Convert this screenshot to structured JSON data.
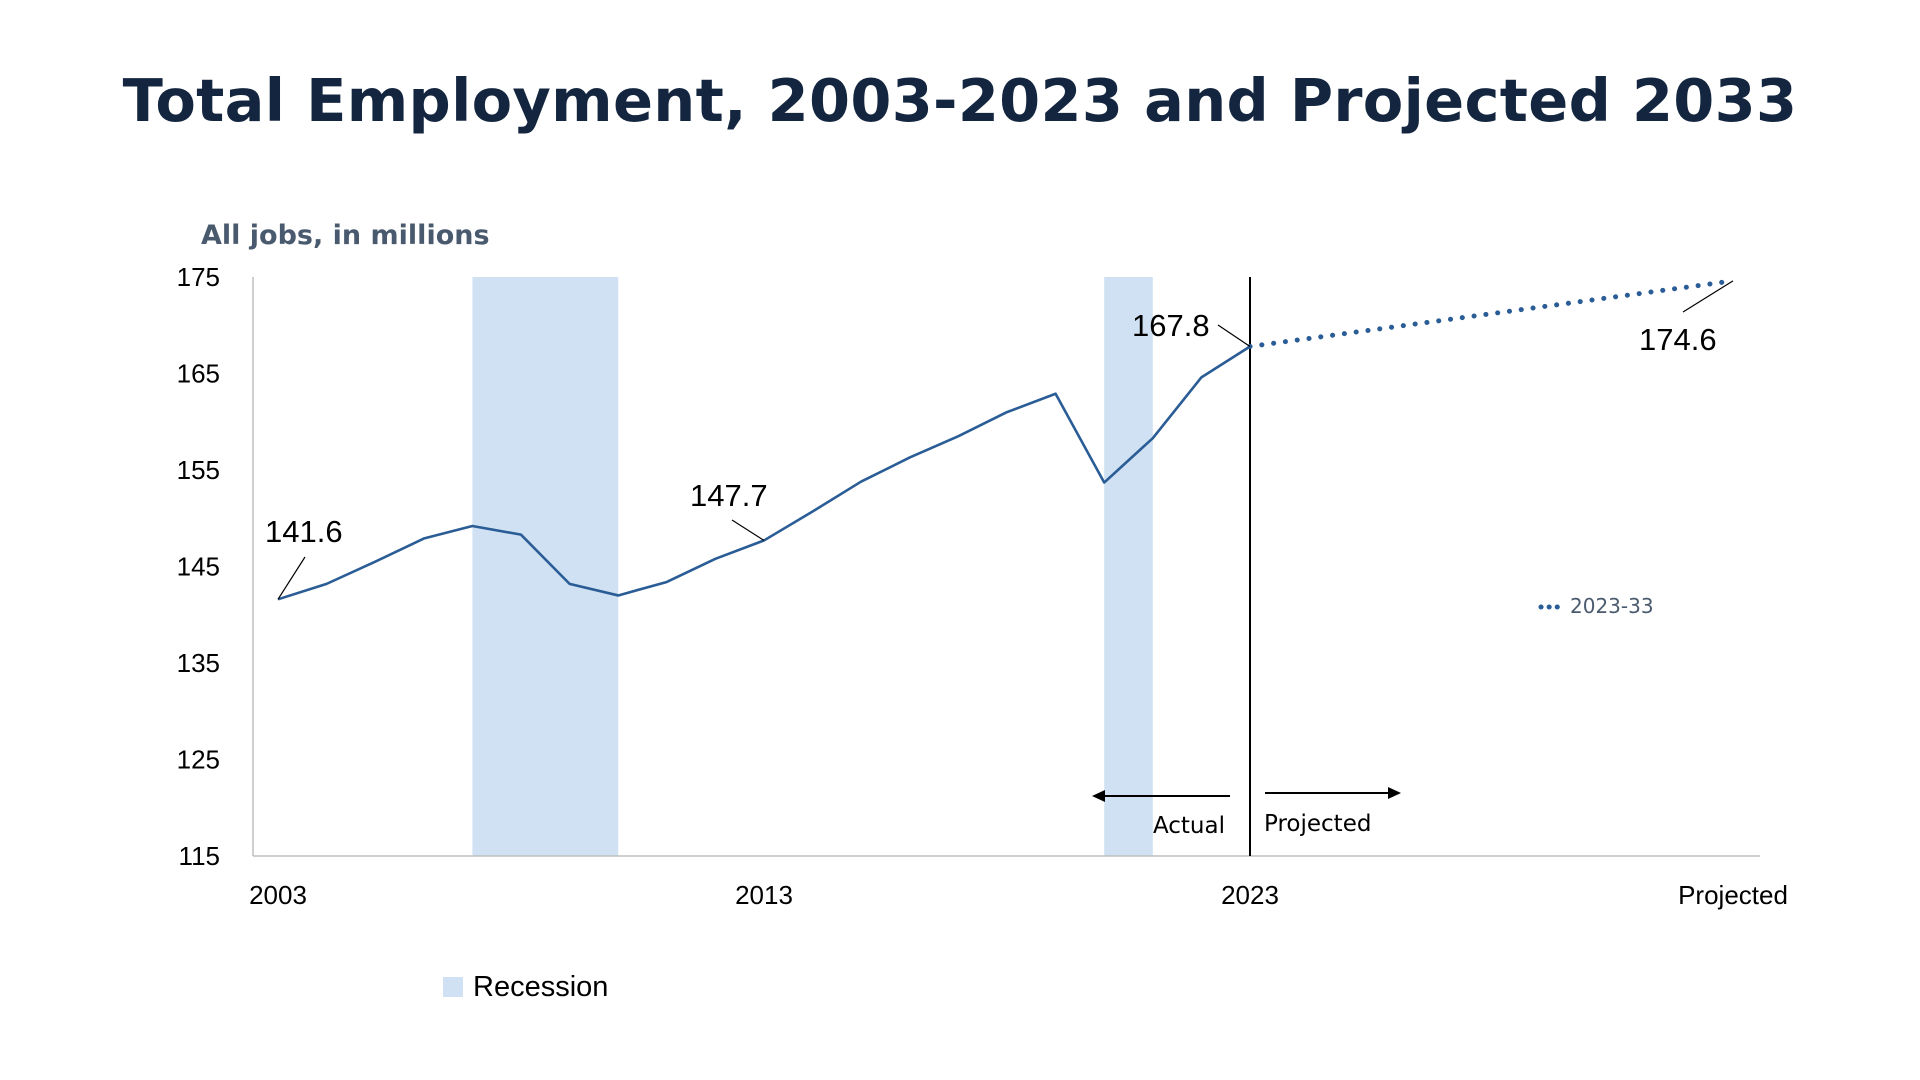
{
  "title": "Total Employment, 2003-2023 and Projected 2033",
  "colors": {
    "line": "#2a5d96",
    "recession": "#cfe1f2",
    "title": "#14263f",
    "axis_title": "#4a5a6e"
  },
  "chart_data": {
    "type": "line",
    "title": "Total Employment, 2003-2023 and Projected 2033",
    "ylabel": "All jobs, in millions",
    "xlabel": "",
    "ylim": [
      115,
      175
    ],
    "yticks": [
      "175",
      "165",
      "155",
      "145",
      "135",
      "125",
      "115"
    ],
    "xticks": [
      "2003",
      "2013",
      "2023",
      "Projected"
    ],
    "grid": false,
    "series": [
      {
        "style": "solid",
        "x": [
          "2003",
          "2004",
          "2005",
          "2006",
          "2007",
          "2008",
          "2009",
          "2010",
          "2011",
          "2012",
          "2013",
          "2014",
          "2015",
          "2016",
          "2017",
          "2018",
          "2019",
          "2020",
          "2021",
          "2022",
          "2023"
        ],
        "values": [
          141.6,
          143.2,
          145.5,
          147.9,
          149.2,
          148.3,
          143.2,
          142.0,
          143.4,
          145.8,
          147.7,
          150.7,
          153.8,
          156.3,
          158.5,
          161.0,
          162.9,
          153.7,
          158.3,
          164.6,
          167.8
        ]
      },
      {
        "name": "2023-33",
        "style": "dotted",
        "x": [
          "2023",
          "Projected"
        ],
        "values": [
          167.8,
          174.6
        ]
      }
    ],
    "recessions": [
      {
        "start": 2007.0,
        "end": 2010.0
      },
      {
        "start": 2020.0,
        "end": 2021.0
      }
    ],
    "annotations": [
      {
        "x": "2003",
        "value": 141.6,
        "label": "141.6"
      },
      {
        "x": "2013",
        "value": 147.7,
        "label": "147.7"
      },
      {
        "x": "2023",
        "value": 167.8,
        "label": "167.8"
      },
      {
        "x": "Projected",
        "value": 174.6,
        "label": "174.6"
      }
    ],
    "divider": {
      "x": "2023",
      "left_label": "Actual",
      "right_label": "Projected"
    },
    "legend": [
      {
        "label": "2023-33",
        "style": "dotted"
      },
      {
        "label": "Recession",
        "style": "box"
      }
    ]
  }
}
